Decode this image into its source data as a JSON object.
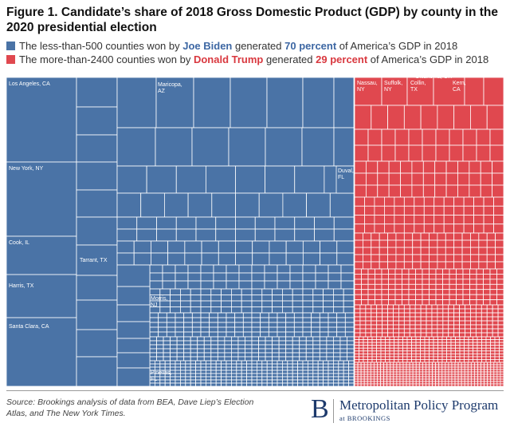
{
  "figure": {
    "title": "Figure 1. Candidate’s share of 2018 Gross Domestic Product (GDP) by county in the 2020 presidential election"
  },
  "legend": {
    "biden": {
      "color": "#4a73a6",
      "prefix": "The less-than-500 counties won by ",
      "candidate": "Joe Biden",
      "middle": " generated ",
      "share": "70 percent",
      "suffix": " of America’s GDP in 2018"
    },
    "trump": {
      "color": "#e0484f",
      "prefix": "The more-than-2400 counties won by ",
      "candidate": "Donald Trump",
      "middle": " generated ",
      "share": "29 percent",
      "suffix": " of America’s GDP in 2018"
    }
  },
  "chart_data": {
    "type": "treemap",
    "title": "Figure 1. Candidate’s share of 2018 Gross Domestic Product (GDP) by county in the 2020 presidential election",
    "series": [
      {
        "name": "Joe Biden",
        "color": "#4a73a6",
        "share_of_gdp_percent": 70,
        "labeled_counties": [
          "Los Angeles, CA",
          "New York, NY",
          "Cook, IL",
          "Harris, TX",
          "Santa Clara, CA",
          "Maricopa, AZ",
          "Tarrant, TX",
          "Morris, NJ",
          "Pinellas, FL",
          "Duval, FL"
        ]
      },
      {
        "name": "Donald Trump",
        "color": "#e0484f",
        "share_of_gdp_percent": 29,
        "labeled_counties": [
          "Nassau, NY",
          "Suffolk, NY",
          "Collin, TX",
          "Kern, CA",
          "Oklahoma, OK"
        ]
      }
    ]
  },
  "source": {
    "text": "Source: Brookings analysis of data from BEA, Dave Liep’s Election Atlas, and The New York Times."
  },
  "logo": {
    "mark": "B",
    "name": "Metropolitan Policy Program",
    "sub": "at BROOKINGS"
  }
}
